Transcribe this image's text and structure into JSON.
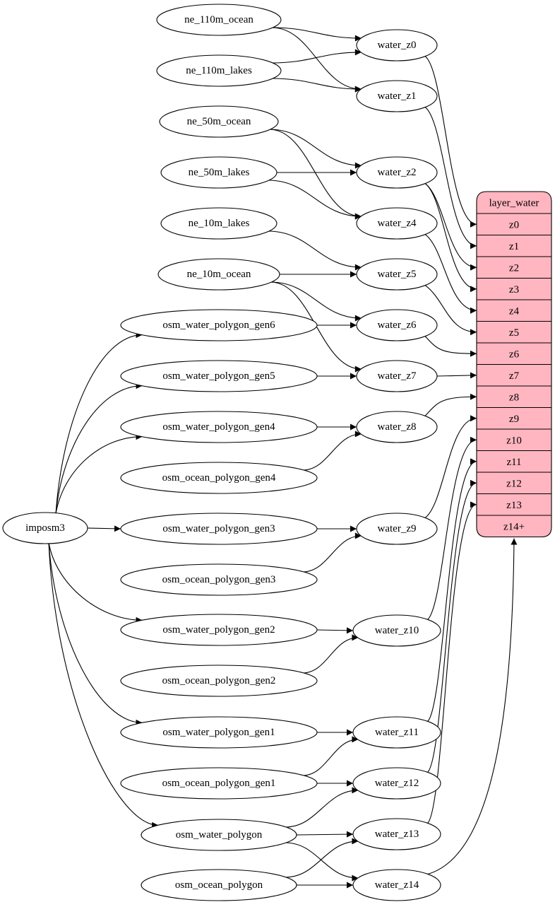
{
  "nodes": {
    "ne_110m_ocean": "ne_110m_ocean",
    "ne_110m_lakes": "ne_110m_lakes",
    "ne_50m_ocean": "ne_50m_ocean",
    "ne_50m_lakes": "ne_50m_lakes",
    "ne_10m_lakes": "ne_10m_lakes",
    "ne_10m_ocean": "ne_10m_ocean",
    "gen6": "osm_water_polygon_gen6",
    "gen5": "osm_water_polygon_gen5",
    "gen4": "osm_water_polygon_gen4",
    "ogen4": "osm_ocean_polygon_gen4",
    "imposm3": "imposm3",
    "gen3": "osm_water_polygon_gen3",
    "ogen3": "osm_ocean_polygon_gen3",
    "gen2": "osm_water_polygon_gen2",
    "ogen2": "osm_ocean_polygon_gen2",
    "gen1": "osm_water_polygon_gen1",
    "ogen1": "osm_ocean_polygon_gen1",
    "wp": "osm_water_polygon",
    "op": "osm_ocean_polygon",
    "wz0": "water_z0",
    "wz1": "water_z1",
    "wz2": "water_z2",
    "wz4": "water_z4",
    "wz5": "water_z5",
    "wz6": "water_z6",
    "wz7": "water_z7",
    "wz8": "water_z8",
    "wz9": "water_z9",
    "wz10": "water_z10",
    "wz11": "water_z11",
    "wz12": "water_z12",
    "wz13": "water_z13",
    "wz14": "water_z14"
  },
  "record": {
    "title": "layer_water",
    "fill": "#ffb6c1",
    "fields": [
      "z0",
      "z1",
      "z2",
      "z3",
      "z4",
      "z5",
      "z6",
      "z7",
      "z8",
      "z9",
      "z10",
      "z11",
      "z12",
      "z13",
      "z14+"
    ]
  },
  "edges": [
    [
      "ne_110m_ocean",
      "wz0"
    ],
    [
      "ne_110m_ocean",
      "wz1"
    ],
    [
      "ne_110m_lakes",
      "wz0"
    ],
    [
      "ne_110m_lakes",
      "wz1"
    ],
    [
      "ne_50m_ocean",
      "wz2"
    ],
    [
      "ne_50m_ocean",
      "wz4"
    ],
    [
      "ne_50m_lakes",
      "wz2"
    ],
    [
      "ne_50m_lakes",
      "wz4"
    ],
    [
      "ne_10m_lakes",
      "wz5"
    ],
    [
      "ne_10m_ocean",
      "wz5"
    ],
    [
      "ne_10m_ocean",
      "wz6"
    ],
    [
      "ne_10m_ocean",
      "wz7"
    ],
    [
      "gen6",
      "wz6"
    ],
    [
      "gen5",
      "wz7"
    ],
    [
      "gen4",
      "wz8"
    ],
    [
      "ogen4",
      "wz8"
    ],
    [
      "gen3",
      "wz9"
    ],
    [
      "ogen3",
      "wz9"
    ],
    [
      "gen2",
      "wz10"
    ],
    [
      "ogen2",
      "wz10"
    ],
    [
      "gen1",
      "wz11"
    ],
    [
      "ogen1",
      "wz11"
    ],
    [
      "ogen1",
      "wz12"
    ],
    [
      "wp",
      "wz12"
    ],
    [
      "wp",
      "wz13"
    ],
    [
      "wp",
      "wz14"
    ],
    [
      "op",
      "wz13"
    ],
    [
      "op",
      "wz14"
    ],
    [
      "imposm3",
      "gen6"
    ],
    [
      "imposm3",
      "gen5"
    ],
    [
      "imposm3",
      "gen4"
    ],
    [
      "imposm3",
      "gen3"
    ],
    [
      "imposm3",
      "gen2"
    ],
    [
      "imposm3",
      "gen1"
    ],
    [
      "imposm3",
      "wp"
    ]
  ],
  "record_edges": [
    [
      "wz0",
      "z0"
    ],
    [
      "wz1",
      "z1"
    ],
    [
      "wz2",
      "z2"
    ],
    [
      "wz2",
      "z3"
    ],
    [
      "wz4",
      "z4"
    ],
    [
      "wz5",
      "z5"
    ],
    [
      "wz6",
      "z6"
    ],
    [
      "wz7",
      "z7"
    ],
    [
      "wz8",
      "z8"
    ],
    [
      "wz9",
      "z9"
    ],
    [
      "wz10",
      "z10"
    ],
    [
      "wz11",
      "z11"
    ],
    [
      "wz12",
      "z12"
    ],
    [
      "wz13",
      "z13"
    ],
    [
      "wz14",
      "z14+"
    ]
  ]
}
